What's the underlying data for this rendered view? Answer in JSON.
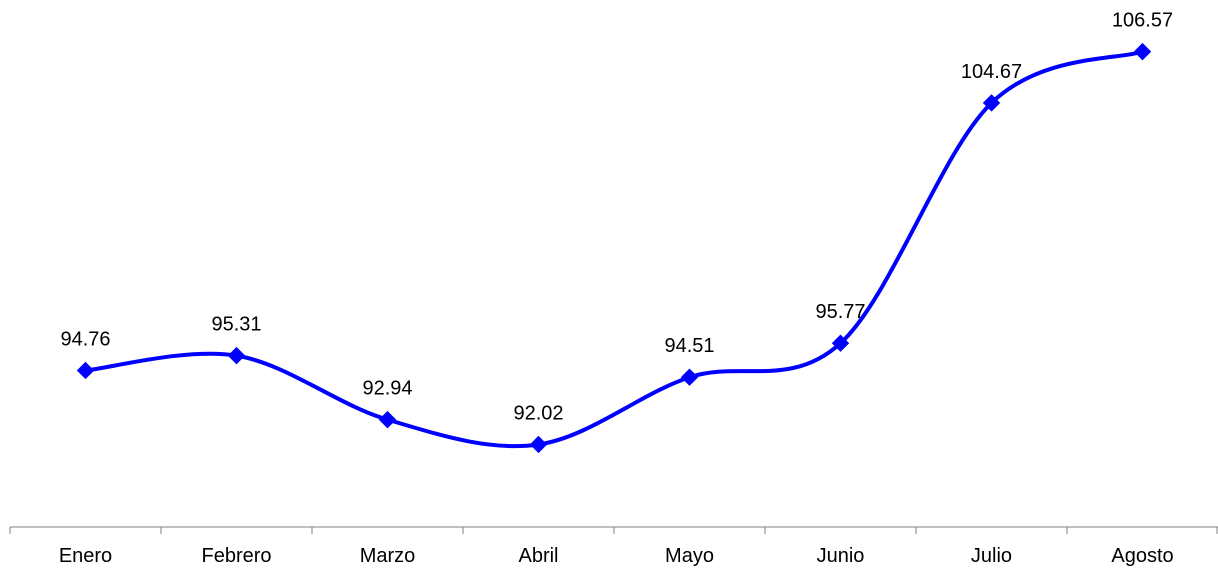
{
  "chart_data": {
    "type": "line",
    "title": "",
    "xlabel": "",
    "ylabel": "",
    "categories": [
      "Enero",
      "Febrero",
      "Marzo",
      "Abril",
      "Mayo",
      "Junio",
      "Julio",
      "Agosto"
    ],
    "series": [
      {
        "values": [
          94.76,
          95.31,
          92.94,
          92.02,
          94.51,
          95.77,
          104.67,
          106.57
        ],
        "data_labels": [
          "94.76",
          "95.31",
          "92.94",
          "92.02",
          "94.51",
          "95.77",
          "104.67",
          "106.57"
        ],
        "color": "#0000FF",
        "marker": "diamond",
        "smooth": true
      }
    ],
    "ylim": [
      89,
      108
    ],
    "y_axis_visible": false,
    "grid": false,
    "legend": "none"
  },
  "colors": {
    "series": "#0000FF",
    "axis": "#808080",
    "text": "#000000"
  }
}
